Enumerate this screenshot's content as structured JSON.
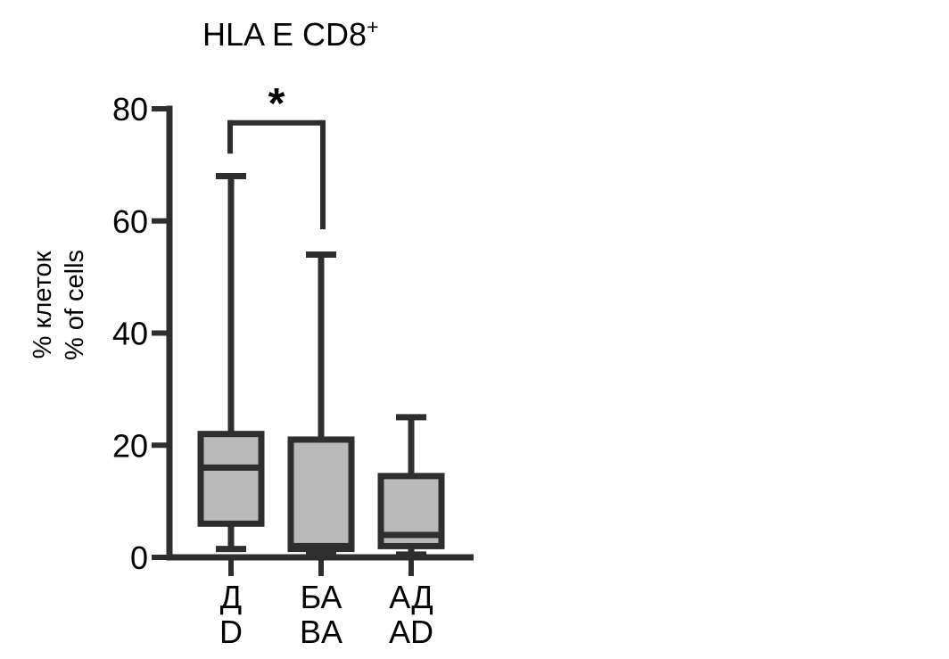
{
  "page": {
    "background": "#ffffff"
  },
  "chart_data": {
    "type": "box",
    "title": {
      "main": "HLA E CD8",
      "superscript": "+",
      "full": "HLA E CD8+"
    },
    "y_axis": {
      "label_lines": [
        "% клеток",
        "% of cells"
      ],
      "min": 0,
      "max": 80,
      "ticks": [
        0,
        20,
        40,
        60,
        80
      ]
    },
    "x_axis": {
      "categories": [
        {
          "line1": "Д",
          "line2": "D"
        },
        {
          "line1": "БА",
          "line2": "BA"
        },
        {
          "line1": "АД",
          "line2": "AD"
        }
      ]
    },
    "grid": false,
    "legend": null,
    "boxes": [
      {
        "category": "Д / D",
        "whisker_low": 1.5,
        "q1": 6,
        "median": 16,
        "q3": 22,
        "whisker_high": 68
      },
      {
        "category": "БА / BA",
        "whisker_low": 0.5,
        "q1": 1.5,
        "median": 2,
        "q3": 21,
        "whisker_high": 54
      },
      {
        "category": "АД / AD",
        "whisker_low": 0.5,
        "q1": 2,
        "median": 4,
        "q3": 14.5,
        "whisker_high": 25
      }
    ],
    "significance": {
      "label": "*",
      "between_indices": [
        0,
        1
      ],
      "bar_value": 77.5,
      "left_drop_to_value": 72,
      "right_drop_to_value": 58.5
    },
    "style": {
      "box_fill": "#b9b9b9",
      "line_color": "#2e2e2e",
      "text_color": "#000000",
      "background": "#ffffff"
    }
  }
}
